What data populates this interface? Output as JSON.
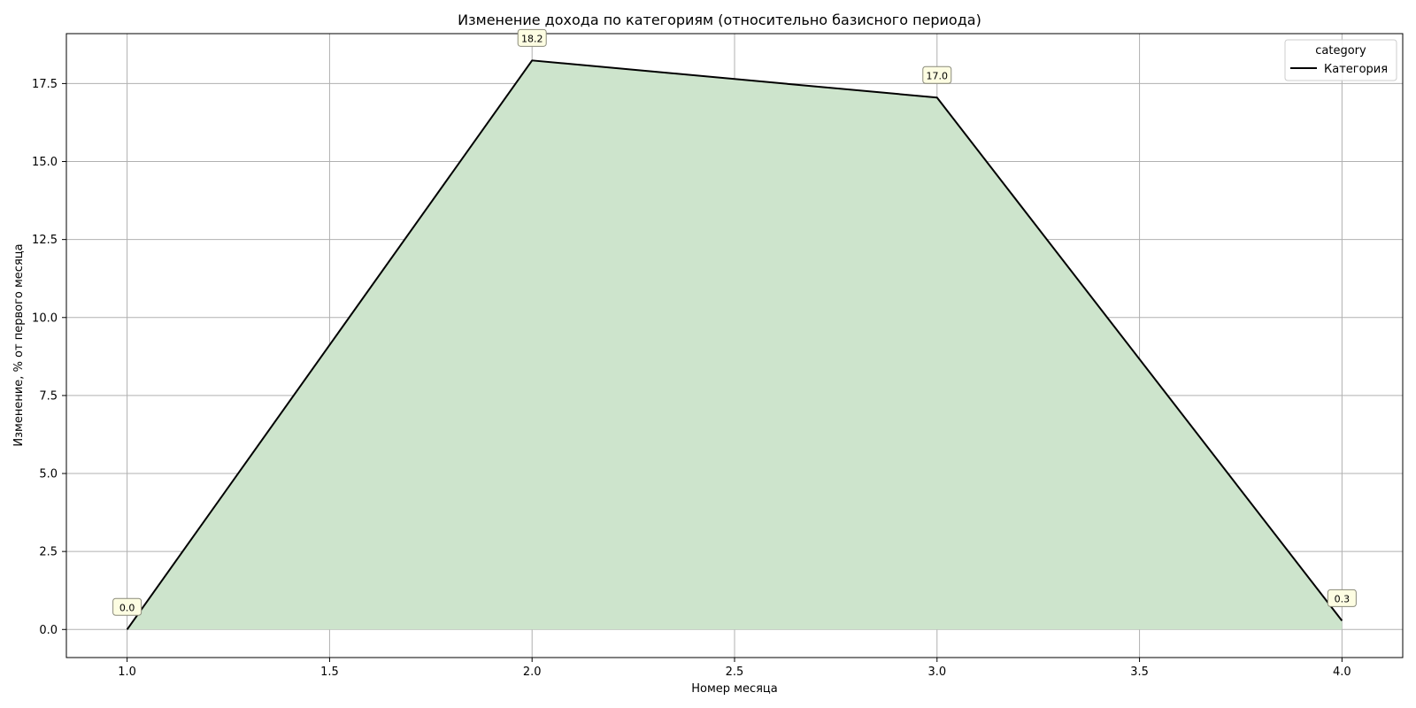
{
  "chart_data": {
    "type": "area",
    "title": "Изменение дохода по категориям (относительно базисного периода)",
    "xlabel": "Номер месяца",
    "ylabel": "Изменение, % от первого месяца",
    "xlim": [
      0.85,
      4.15
    ],
    "ylim": [
      -0.9,
      19.1
    ],
    "x_ticks": [
      1.0,
      1.5,
      2.0,
      2.5,
      3.0,
      3.5,
      4.0
    ],
    "x_tick_labels": [
      "1.0",
      "1.5",
      "2.0",
      "2.5",
      "3.0",
      "3.5",
      "4.0"
    ],
    "y_ticks": [
      0.0,
      2.5,
      5.0,
      7.5,
      10.0,
      12.5,
      15.0,
      17.5
    ],
    "y_tick_labels": [
      "0.0",
      "2.5",
      "5.0",
      "7.5",
      "10.0",
      "12.5",
      "15.0",
      "17.5"
    ],
    "grid": true,
    "legend": {
      "title": "category",
      "placement": "top-right"
    },
    "series": [
      {
        "name": "Категория",
        "x": [
          1,
          2,
          3,
          4
        ],
        "values": [
          0.0,
          18.24,
          17.05,
          0.28
        ],
        "labels": [
          "0.0",
          "18.2",
          "17.0",
          "0.3"
        ],
        "line_color": "#000000",
        "fill_color": "#cde4cc"
      }
    ]
  }
}
